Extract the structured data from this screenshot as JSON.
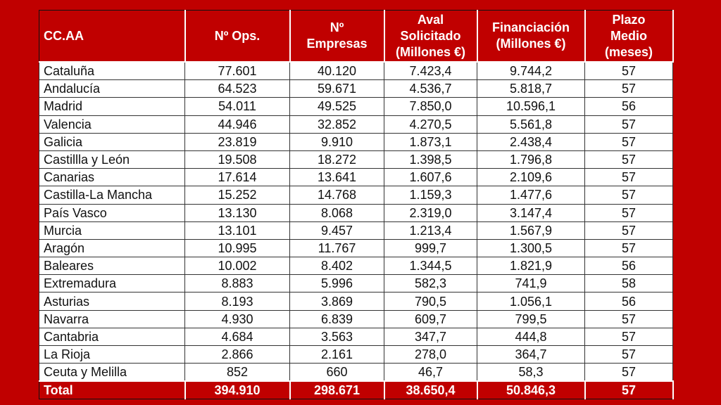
{
  "table": {
    "header": [
      [
        "CC.AA"
      ],
      [
        "Nº Ops."
      ],
      [
        "Nº",
        "Empresas"
      ],
      [
        "Aval",
        "Solicitado",
        "(Millones €)"
      ],
      [
        "Financiación",
        "(Millones €)"
      ],
      [
        "Plazo",
        "Medio",
        "(meses)"
      ]
    ],
    "rows": [
      [
        "Cataluña",
        "77.601",
        "40.120",
        "7.423,4",
        "9.744,2",
        "57"
      ],
      [
        "Andalucía",
        "64.523",
        "59.671",
        "4.536,7",
        "5.818,7",
        "57"
      ],
      [
        "Madrid",
        "54.011",
        "49.525",
        "7.850,0",
        "10.596,1",
        "56"
      ],
      [
        "Valencia",
        "44.946",
        "32.852",
        "4.270,5",
        "5.561,8",
        "57"
      ],
      [
        "Galicia",
        "23.819",
        "9.910",
        "1.873,1",
        "2.438,4",
        "57"
      ],
      [
        "Castillla y León",
        "19.508",
        "18.272",
        "1.398,5",
        "1.796,8",
        "57"
      ],
      [
        "Canarias",
        "17.614",
        "13.641",
        "1.607,6",
        "2.109,6",
        "57"
      ],
      [
        "Castilla-La Mancha",
        "15.252",
        "14.768",
        "1.159,3",
        "1.477,6",
        "57"
      ],
      [
        "País Vasco",
        "13.130",
        "8.068",
        "2.319,0",
        "3.147,4",
        "57"
      ],
      [
        "Murcia",
        "13.101",
        "9.457",
        "1.213,4",
        "1.567,9",
        "57"
      ],
      [
        "Aragón",
        "10.995",
        "11.767",
        "999,7",
        "1.300,5",
        "57"
      ],
      [
        "Baleares",
        "10.002",
        "8.402",
        "1.344,5",
        "1.821,9",
        "56"
      ],
      [
        "Extremadura",
        "8.883",
        "5.996",
        "582,3",
        "741,9",
        "58"
      ],
      [
        "Asturias",
        "8.193",
        "3.869",
        "790,5",
        "1.056,1",
        "56"
      ],
      [
        "Navarra",
        "4.930",
        "6.839",
        "609,7",
        "799,5",
        "57"
      ],
      [
        "Cantabria",
        "4.684",
        "3.563",
        "347,7",
        "444,8",
        "57"
      ],
      [
        "La Rioja",
        "2.866",
        "2.161",
        "278,0",
        "364,7",
        "57"
      ],
      [
        "Ceuta y Melilla",
        "852",
        "660",
        "46,7",
        "58,3",
        "57"
      ]
    ],
    "total": [
      "Total",
      "394.910",
      "298.671",
      "38.650,4",
      "50.846,3",
      "57"
    ]
  }
}
